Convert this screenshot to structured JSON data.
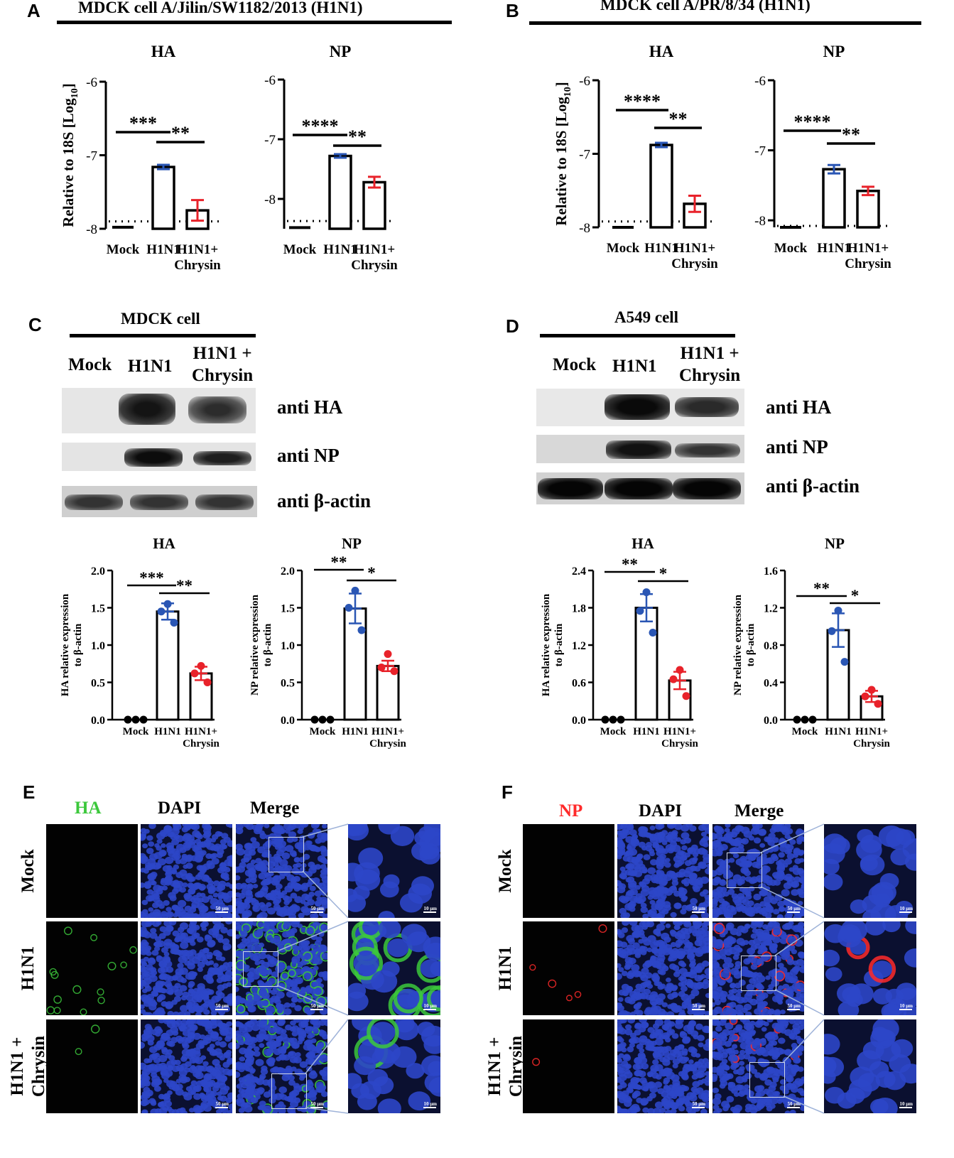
{
  "panels": {
    "A": {
      "letter": "A",
      "header": "MDCK cell     A/Jilin/SW1182/2013 (H1N1)"
    },
    "B": {
      "letter": "B",
      "header": "MDCK cell     A/PR/8/34 (H1N1)"
    },
    "C": {
      "letter": "C",
      "header": "MDCK cell"
    },
    "D": {
      "letter": "D",
      "header": "A549 cell"
    },
    "E": {
      "letter": "E"
    },
    "F": {
      "letter": "F"
    }
  },
  "western": {
    "C": {
      "lanes": [
        "Mock",
        "H1N1",
        "H1N1 +\nChrysin"
      ],
      "antibodies": [
        "anti HA",
        "anti NP",
        "anti β-actin"
      ]
    },
    "D": {
      "lanes": [
        "Mock",
        "H1N1",
        "H1N1 +\nChrysin"
      ],
      "antibodies": [
        "anti HA",
        "anti NP",
        "anti β-actin"
      ]
    }
  },
  "chart_data": [
    {
      "id": "A-HA",
      "type": "bar",
      "title": "HA",
      "ylabel": "Relative to 18S [Log10]",
      "categories": [
        "Mock",
        "H1N1",
        "H1N1+\nChrysin"
      ],
      "ylim": [
        -8,
        -6
      ],
      "yticks": [
        "-6",
        "-7",
        "-8"
      ],
      "values": [
        -7.98,
        -7.16,
        -7.75
      ],
      "errors": [
        0,
        0.03,
        0.14
      ],
      "bar_colors": [
        "#000000",
        "#2a56b4",
        "#e8222a"
      ],
      "baseline": -7.9,
      "significance": [
        {
          "from": 0,
          "to": 1,
          "label": "***"
        },
        {
          "from": 1,
          "to": 2,
          "label": "**"
        }
      ]
    },
    {
      "id": "A-NP",
      "type": "bar",
      "title": "NP",
      "ylabel": "",
      "categories": [
        "Mock",
        "H1N1",
        "H1N1+\nChrysin"
      ],
      "ylim": [
        -8.5,
        -6
      ],
      "yticks": [
        "-6",
        "-7",
        "-8"
      ],
      "values": [
        -8.48,
        -7.28,
        -7.72
      ],
      "errors": [
        0,
        0.03,
        0.09
      ],
      "bar_colors": [
        "#000000",
        "#2a56b4",
        "#e8222a"
      ],
      "baseline": -8.37,
      "significance": [
        {
          "from": 0,
          "to": 1,
          "label": "****"
        },
        {
          "from": 1,
          "to": 2,
          "label": "**"
        }
      ]
    },
    {
      "id": "B-HA",
      "type": "bar",
      "title": "HA",
      "ylabel": "Relative to 18S [Log10]",
      "categories": [
        "Mock",
        "H1N1",
        "H1N1+\nChrysin"
      ],
      "ylim": [
        -8,
        -6
      ],
      "yticks": [
        "-6",
        "-7",
        "-8"
      ],
      "values": [
        -8.0,
        -6.88,
        -7.68
      ],
      "errors": [
        0,
        0.03,
        0.11
      ],
      "bar_colors": [
        "#000000",
        "#2a56b4",
        "#e8222a"
      ],
      "baseline": -7.92,
      "significance": [
        {
          "from": 0,
          "to": 1,
          "label": "****"
        },
        {
          "from": 1,
          "to": 2,
          "label": "**"
        }
      ]
    },
    {
      "id": "B-NP",
      "type": "bar",
      "title": "NP",
      "ylabel": "",
      "categories": [
        "Mock",
        "H1N1",
        "H1N1+\nChrysin"
      ],
      "ylim": [
        -8.1,
        -6
      ],
      "yticks": [
        "-6",
        "-7",
        "-8"
      ],
      "values": [
        -8.1,
        -7.27,
        -7.58
      ],
      "errors": [
        0,
        0.06,
        0.06
      ],
      "bar_colors": [
        "#000000",
        "#2a56b4",
        "#e8222a"
      ],
      "baseline": -8.08,
      "significance": [
        {
          "from": 0,
          "to": 1,
          "label": "****"
        },
        {
          "from": 1,
          "to": 2,
          "label": "**"
        }
      ]
    },
    {
      "id": "C-HA",
      "type": "bar",
      "title": "HA",
      "ylabel": "HA relative expression\nto β-actin",
      "categories": [
        "Mock",
        "H1N1",
        "H1N1+\nChrysin"
      ],
      "ylim": [
        0,
        2
      ],
      "yticks": [
        "0.0",
        "0.5",
        "1.0",
        "1.5",
        "2.0"
      ],
      "values": [
        0,
        1.45,
        0.62
      ],
      "errors": [
        0,
        0.11,
        0.09
      ],
      "points": [
        [
          0,
          0,
          0
        ],
        [
          1.55,
          1.45,
          1.3
        ],
        [
          0.72,
          0.62,
          0.5
        ]
      ],
      "significance": [
        {
          "from": 0,
          "to": 1,
          "label": "***"
        },
        {
          "from": 1,
          "to": 2,
          "label": "**"
        }
      ]
    },
    {
      "id": "C-NP",
      "type": "bar",
      "title": "NP",
      "ylabel": "NP relative expression\nto β-actin",
      "categories": [
        "Mock",
        "H1N1",
        "H1N1+\nChrysin"
      ],
      "ylim": [
        0,
        2
      ],
      "yticks": [
        "0.0",
        "0.5",
        "1.0",
        "1.5",
        "2.0"
      ],
      "values": [
        0,
        1.49,
        0.72
      ],
      "errors": [
        0,
        0.2,
        0.07
      ],
      "points": [
        [
          0,
          0,
          0
        ],
        [
          1.73,
          1.5,
          1.2
        ],
        [
          0.88,
          0.7,
          0.65
        ]
      ],
      "significance": [
        {
          "from": 0,
          "to": 1,
          "label": "**"
        },
        {
          "from": 1,
          "to": 2,
          "label": "*"
        }
      ]
    },
    {
      "id": "D-HA",
      "type": "bar",
      "title": "HA",
      "ylabel": "HA relative expression\nto β-actin",
      "categories": [
        "Mock",
        "H1N1",
        "H1N1+\nChrysin"
      ],
      "ylim": [
        0,
        2.4
      ],
      "yticks": [
        "0.0",
        "0.6",
        "1.2",
        "1.8",
        "2.4"
      ],
      "values": [
        0,
        1.8,
        0.63
      ],
      "errors": [
        0,
        0.22,
        0.14
      ],
      "points": [
        [
          0,
          0,
          0
        ],
        [
          2.05,
          1.75,
          1.4
        ],
        [
          0.8,
          0.65,
          0.38
        ]
      ],
      "significance": [
        {
          "from": 0,
          "to": 1,
          "label": "**"
        },
        {
          "from": 1,
          "to": 2,
          "label": "*"
        }
      ]
    },
    {
      "id": "D-NP",
      "type": "bar",
      "title": "NP",
      "ylabel": "NP relative expression\nto β-actin",
      "categories": [
        "Mock",
        "H1N1",
        "H1N1+\nChrysin"
      ],
      "ylim": [
        0,
        1.6
      ],
      "yticks": [
        "0.0",
        "0.4",
        "0.8",
        "1.2",
        "1.6"
      ],
      "values": [
        0,
        0.96,
        0.25
      ],
      "errors": [
        0,
        0.18,
        0.06
      ],
      "points": [
        [
          0,
          0,
          0
        ],
        [
          1.17,
          0.95,
          0.62
        ],
        [
          0.32,
          0.25,
          0.17
        ]
      ],
      "significance": [
        {
          "from": 0,
          "to": 1,
          "label": "**"
        },
        {
          "from": 1,
          "to": 2,
          "label": "*"
        }
      ]
    }
  ],
  "microscopy": {
    "E": {
      "columns": [
        "HA",
        "DAPI",
        "Merge"
      ],
      "rows": [
        "Mock",
        "H1N1",
        "H1N1 +\nChrysin"
      ],
      "stain_color": "#3cc83c",
      "scale_large": "50 μm",
      "scale_small": "10 μm"
    },
    "F": {
      "columns": [
        "NP",
        "DAPI",
        "Merge"
      ],
      "rows": [
        "Mock",
        "H1N1",
        "H1N1 +\nChrysin"
      ],
      "stain_color": "#ff2a2a",
      "scale_large": "50 μm",
      "scale_small": "10 μm"
    }
  }
}
